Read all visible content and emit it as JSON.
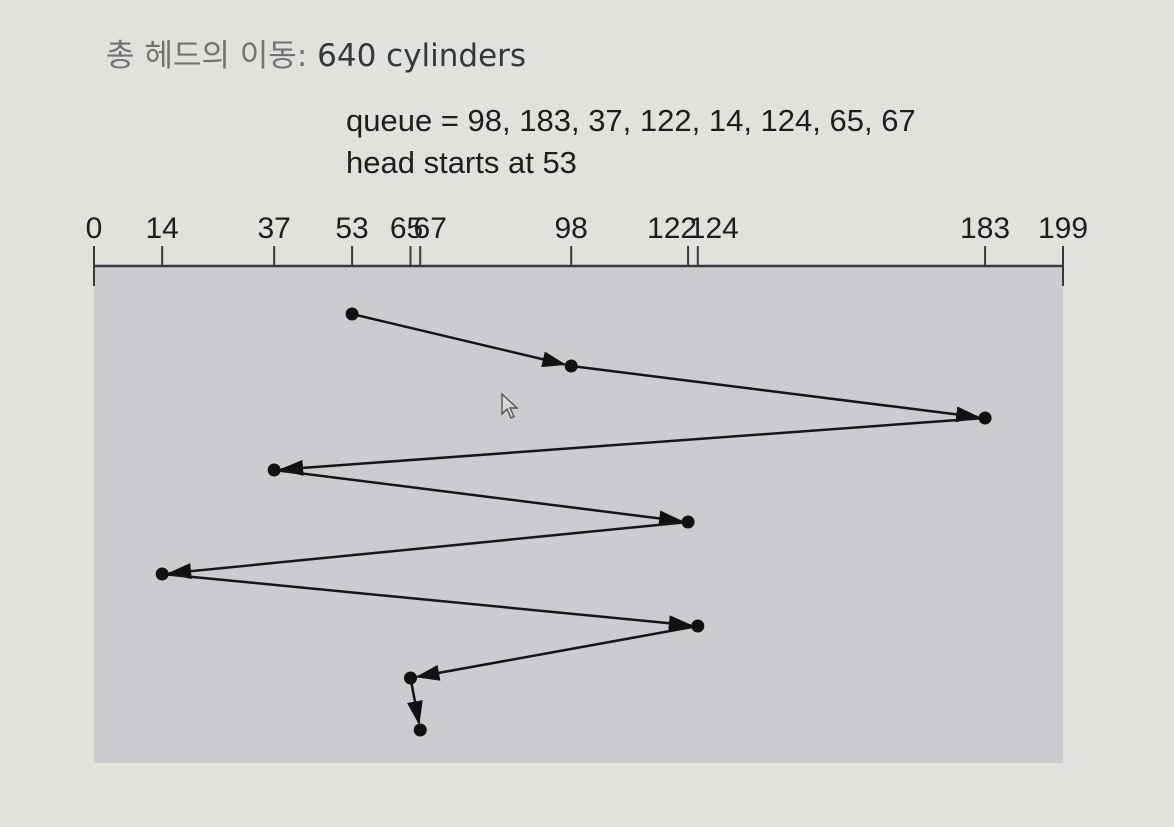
{
  "title": {
    "prefix": "총 헤드의 이동: ",
    "value": "640 cylinders"
  },
  "queue_text": "queue = 98, 183, 37, 122, 14, 124, 65, 67",
  "head_text": "head starts at 53",
  "colors": {
    "background": "#e1e1de",
    "panel": "#cbcccf",
    "ink": "#1e1e1e"
  },
  "chart_data": {
    "type": "line",
    "axis_range": [
      0,
      199
    ],
    "tick_labels": [
      "0",
      "14",
      "37",
      "53",
      "65",
      "67",
      "98",
      "122",
      "124",
      "183",
      "199"
    ],
    "tick_values": [
      0,
      14,
      37,
      53,
      65,
      67,
      98,
      122,
      124,
      183,
      199
    ],
    "head_start": 53,
    "queue": [
      98,
      183,
      37,
      122,
      14,
      124,
      65,
      67
    ],
    "path": [
      53,
      98,
      183,
      37,
      122,
      14,
      124,
      65,
      67
    ]
  },
  "cursor_icon": "mouse-pointer-icon"
}
